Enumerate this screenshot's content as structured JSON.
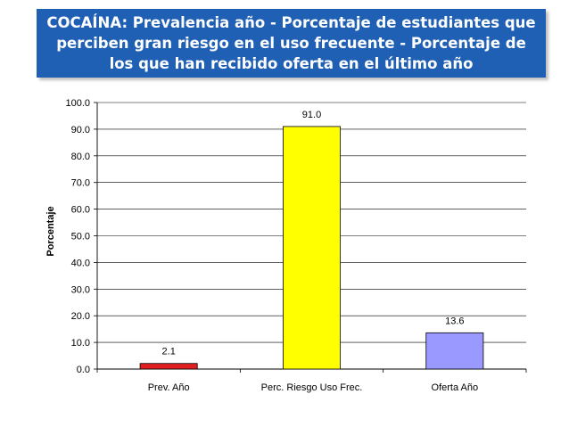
{
  "chart_data": {
    "type": "bar",
    "title": "COCAÍNA: Prevalencia año - Porcentaje de estudiantes que perciben gran riesgo en el uso frecuente  - Porcentaje de los que han recibido oferta en el último año",
    "categories": [
      "Prev. Año",
      "Perc. Riesgo Uso Frec.",
      "Oferta Año"
    ],
    "values": [
      2.1,
      91.0,
      13.6
    ],
    "value_labels": [
      "2.1",
      "91.0",
      "13.6"
    ],
    "bar_colors": [
      "#e02020",
      "#ffff00",
      "#9999ff"
    ],
    "ylabel": "Porcentaje",
    "xlabel": "",
    "ylim": [
      0,
      100
    ],
    "yticks": [
      "0.0",
      "10.0",
      "20.0",
      "30.0",
      "40.0",
      "50.0",
      "60.0",
      "70.0",
      "80.0",
      "90.0",
      "100.0"
    ],
    "grid": true
  },
  "colors": {
    "title_bg": "#1f5fb4",
    "gridline": "#000000"
  }
}
